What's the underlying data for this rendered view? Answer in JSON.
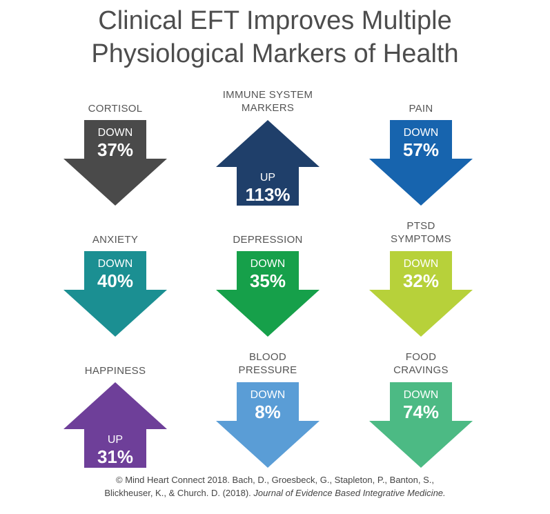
{
  "title": {
    "line1": "Clinical EFT Improves Multiple",
    "line2": "Physiological Markers of Health"
  },
  "markers": [
    {
      "label": [
        "CORTISOL"
      ],
      "direction": "DOWN",
      "value": "37%",
      "color": "#4a4a4a"
    },
    {
      "label": [
        "IMMUNE SYSTEM",
        "MARKERS"
      ],
      "direction": "UP",
      "value": "113%",
      "color": "#1f3f6a"
    },
    {
      "label": [
        "PAIN"
      ],
      "direction": "DOWN",
      "value": "57%",
      "color": "#1764ae"
    },
    {
      "label": [
        "ANXIETY"
      ],
      "direction": "DOWN",
      "value": "40%",
      "color": "#1b8f92"
    },
    {
      "label": [
        "DEPRESSION"
      ],
      "direction": "DOWN",
      "value": "35%",
      "color": "#16a04a"
    },
    {
      "label": [
        "PTSD",
        "SYMPTOMS"
      ],
      "direction": "DOWN",
      "value": "32%",
      "color": "#b7d13a"
    },
    {
      "label": [
        "HAPPINESS"
      ],
      "direction": "UP",
      "value": "31%",
      "color": "#6e3f99"
    },
    {
      "label": [
        "BLOOD",
        "PRESSURE"
      ],
      "direction": "DOWN",
      "value": "8%",
      "color": "#5a9dd6"
    },
    {
      "label": [
        "FOOD",
        "CRAVINGS"
      ],
      "direction": "DOWN",
      "value": "74%",
      "color": "#4cba84"
    }
  ],
  "footer": {
    "line1": "© Mind Heart Connect 2018. Bach, D., Groesbeck, G., Stapleton, P., Banton, S.,",
    "line2_plain": "Blickheuser, K., & Church. D. (2018).",
    "line2_italic": "Journal of Evidence Based Integrative Medicine."
  }
}
